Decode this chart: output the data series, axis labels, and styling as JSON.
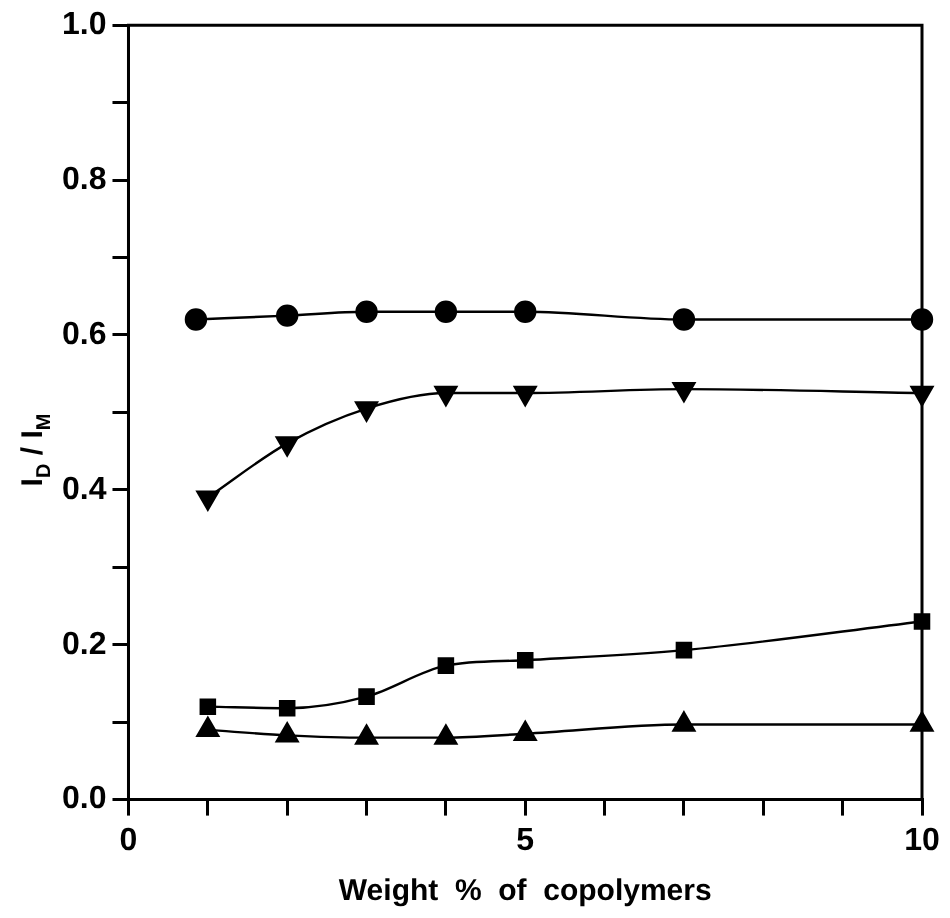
{
  "chart_data": {
    "type": "line",
    "xlabel": "Weight  %  of  copolymers",
    "ylabel": "I$_{D}$ / I$_{M}$",
    "xlim": [
      0,
      10
    ],
    "xticks": [
      0,
      {
        "value": 1,
        "label": null
      },
      {
        "value": 2,
        "label": null
      },
      {
        "value": 3,
        "label": null
      },
      {
        "value": 4,
        "label": null
      },
      5,
      {
        "value": 6,
        "label": null
      },
      {
        "value": 7,
        "label": null
      },
      {
        "value": 8,
        "label": null
      },
      {
        "value": 9,
        "label": null
      },
      10
    ],
    "ylim": [
      0,
      1
    ],
    "yticks": [
      {
        "value": 0,
        "label": "0.0"
      },
      {
        "value": 0.1,
        "label": null
      },
      0.2,
      {
        "value": 0.3,
        "label": null
      },
      0.4,
      {
        "value": 0.5,
        "label": null
      },
      0.6,
      {
        "value": 0.7,
        "label": null
      },
      0.8,
      {
        "value": 0.9,
        "label": null
      },
      {
        "value": 1,
        "label": "1.0"
      }
    ],
    "grid": false,
    "legend": false,
    "series": [
      {
        "color": "#000000",
        "marker": "circle",
        "x": [
          0.85,
          2,
          3,
          4,
          5,
          7,
          10
        ],
        "values": [
          0.62,
          0.625,
          0.63,
          0.63,
          0.63,
          0.62,
          0.62
        ]
      },
      {
        "color": "#000000",
        "marker": "triangle_down",
        "x": [
          1,
          2,
          3,
          4,
          5,
          7,
          10
        ],
        "values": [
          0.39,
          0.46,
          0.505,
          0.525,
          0.525,
          0.53,
          0.525
        ]
      },
      {
        "color": "#000000",
        "marker": "square",
        "x": [
          1,
          2,
          3,
          4,
          5,
          7,
          10
        ],
        "values": [
          0.12,
          0.118,
          0.133,
          0.173,
          0.18,
          0.193,
          0.23
        ]
      },
      {
        "color": "#000000",
        "marker": "triangle",
        "x": [
          1,
          2,
          3,
          4,
          5,
          7,
          10
        ],
        "values": [
          0.09,
          0.083,
          0.08,
          0.08,
          0.085,
          0.097,
          0.097
        ]
      }
    ]
  }
}
